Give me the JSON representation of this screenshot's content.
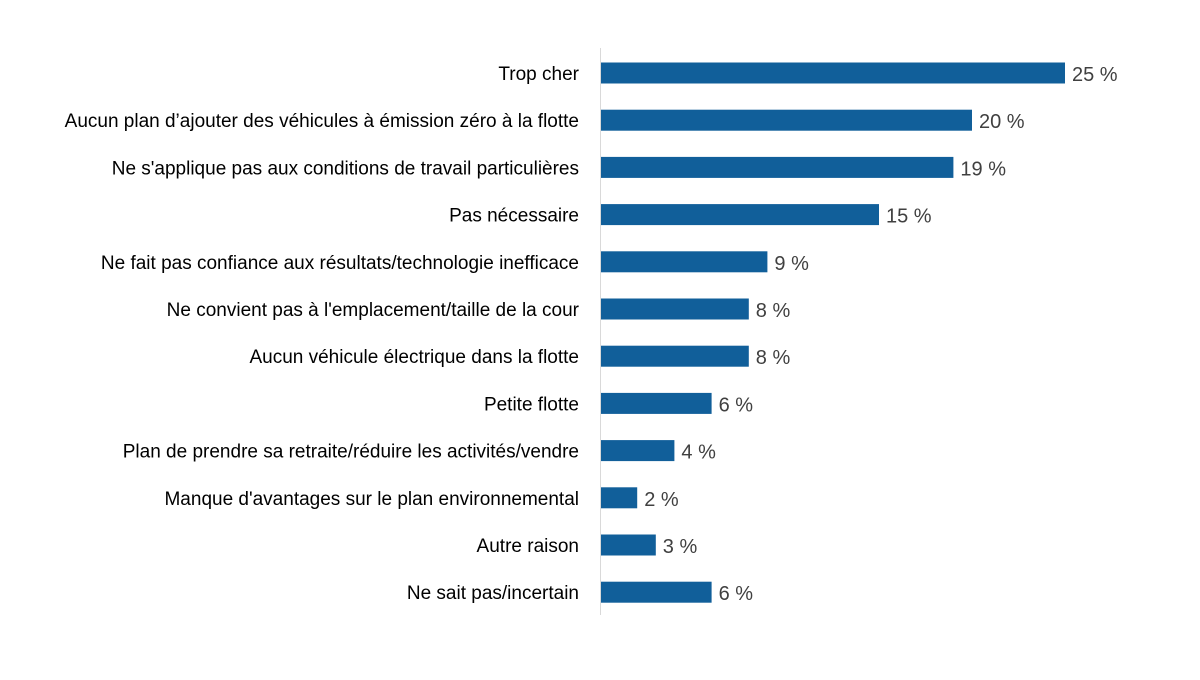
{
  "chart_data": {
    "type": "bar",
    "orientation": "horizontal",
    "categories": [
      "Trop cher",
      "Aucun plan d’ajouter des véhicules à émission zéro à la flotte",
      "Ne s'applique pas aux conditions de travail particulières",
      "Pas nécessaire",
      "Ne fait pas confiance aux résultats/technologie inefficace",
      "Ne convient pas à l'emplacement/taille de la cour",
      "Aucun véhicule électrique dans la flotte",
      "Petite flotte",
      "Plan de prendre sa retraite/réduire les activités/vendre",
      "Manque d'avantages sur le plan environnemental",
      "Autre raison",
      "Ne sait pas/incertain"
    ],
    "values": [
      25,
      20,
      19,
      15,
      9,
      8,
      8,
      6,
      4,
      2,
      3,
      6
    ],
    "value_labels": [
      "25 %",
      "20 %",
      "19 %",
      "15 %",
      "9 %",
      "8 %",
      "8 %",
      "6 %",
      "4 %",
      "2 %",
      "3 %",
      "6 %"
    ],
    "unit": "%",
    "title": "",
    "xlabel": "",
    "ylabel": "",
    "xlim": [
      0,
      25
    ],
    "grid": false,
    "legend": "none",
    "colors": {
      "bar": "#115f9a",
      "axis": "#d9d9d9",
      "category_text": "#000000",
      "value_text": "#404040"
    }
  }
}
